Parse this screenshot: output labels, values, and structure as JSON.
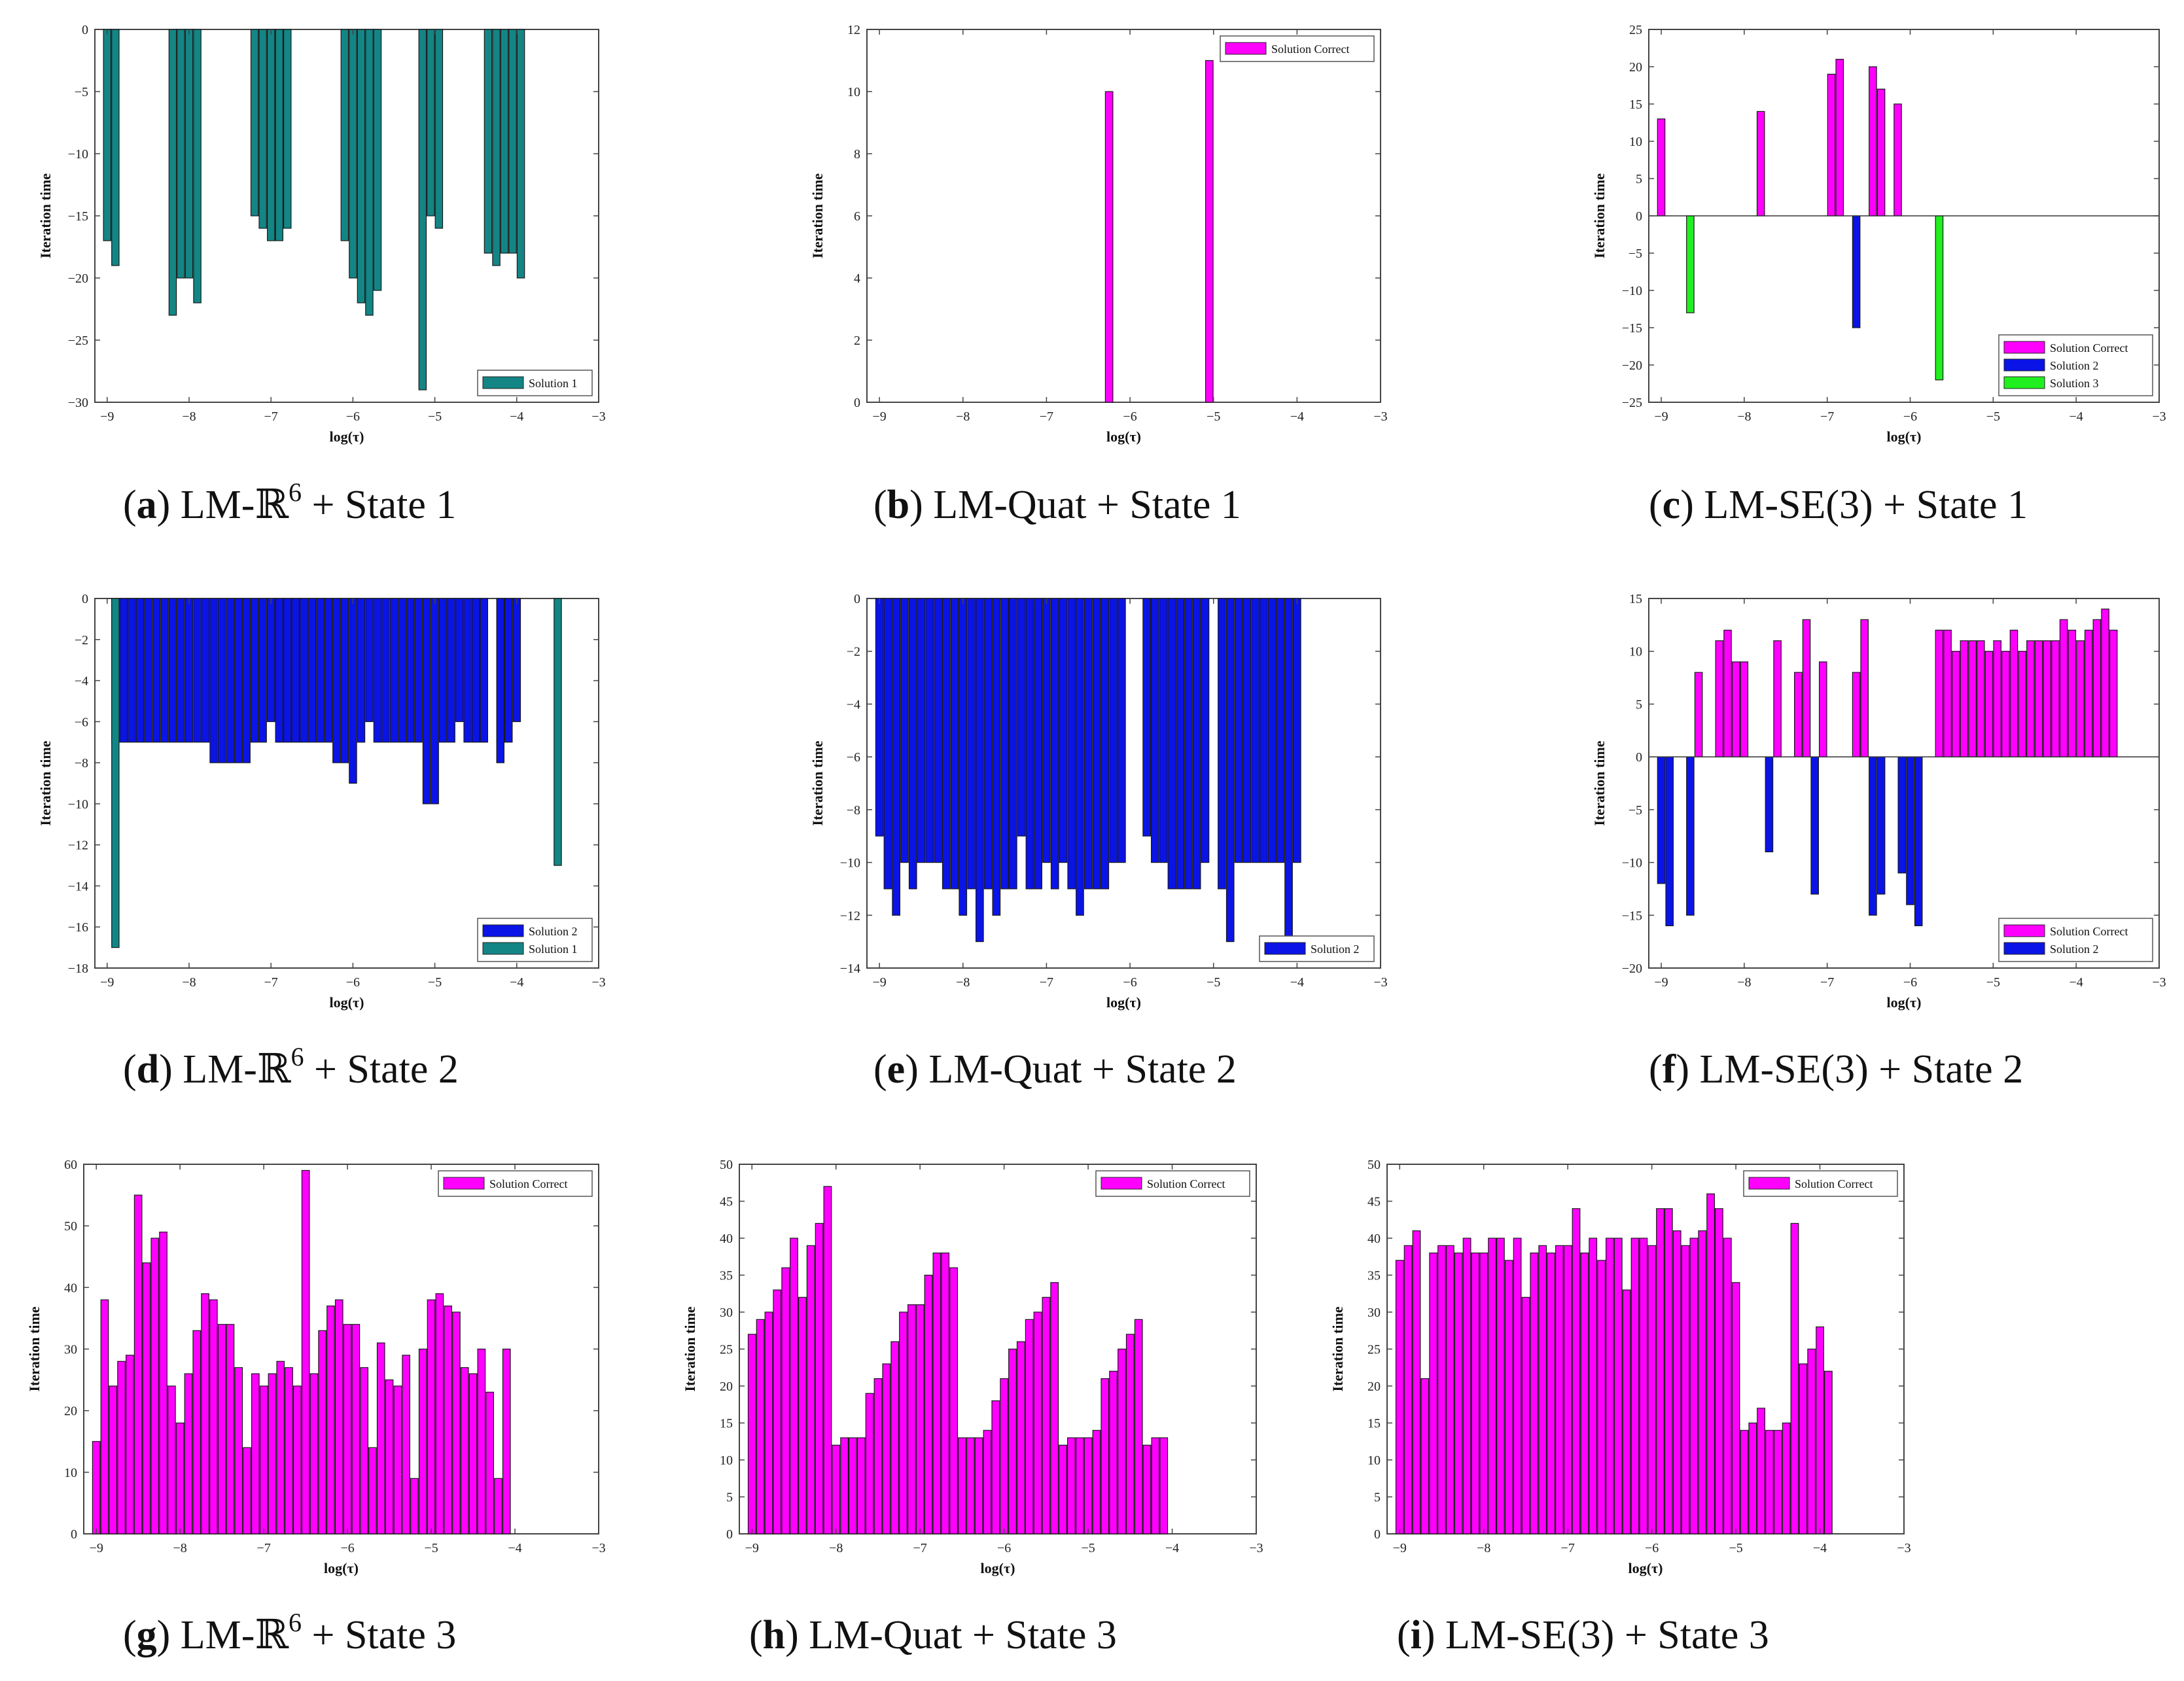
{
  "figure": {
    "panels": [
      {
        "id": "a",
        "caption": {
          "letter": "a",
          "text": "LM-ℝ",
          "sup": "6",
          "tail": " + State 1"
        }
      },
      {
        "id": "b",
        "caption": {
          "letter": "b",
          "text": "LM-Quat + State 1",
          "sup": "",
          "tail": ""
        }
      },
      {
        "id": "c",
        "caption": {
          "letter": "c",
          "text": "LM-SE(3) + State 1",
          "sup": "",
          "tail": ""
        }
      },
      {
        "id": "d",
        "caption": {
          "letter": "d",
          "text": "LM-ℝ",
          "sup": "6",
          "tail": " + State 2"
        }
      },
      {
        "id": "e",
        "caption": {
          "letter": "e",
          "text": "LM-Quat + State 2",
          "sup": "",
          "tail": ""
        }
      },
      {
        "id": "f",
        "caption": {
          "letter": "f",
          "text": "LM-SE(3) + State 2",
          "sup": "",
          "tail": ""
        }
      },
      {
        "id": "g",
        "caption": {
          "letter": "g",
          "text": "LM-ℝ",
          "sup": "6",
          "tail": " + State 3"
        }
      },
      {
        "id": "h",
        "caption": {
          "letter": "h",
          "text": "LM-Quat + State 3",
          "sup": "",
          "tail": ""
        }
      },
      {
        "id": "i",
        "caption": {
          "letter": "i",
          "text": "LM-SE(3) + State 3",
          "sup": "",
          "tail": ""
        }
      }
    ]
  },
  "colors": {
    "Solution Correct": "#ff00ff",
    "Solution 1": "#138585",
    "Solution 2": "#0a14e6",
    "Solution 3": "#20f020",
    "axis": "#444444"
  },
  "chart_data": [
    {
      "id": "a",
      "type": "bar",
      "xlabel": "log(τ)",
      "ylabel": "Iteration time",
      "xlim": [
        -9.15,
        -3
      ],
      "ylim": [
        -30,
        0
      ],
      "yticks": [
        0,
        -5,
        -10,
        -15,
        -20,
        -25,
        -30
      ],
      "xticks": [
        -9,
        -8,
        -7,
        -6,
        -5,
        -4,
        -3
      ],
      "bar_width": 0.09,
      "legend": {
        "position": "bottom-right",
        "entries": [
          "Solution 1"
        ]
      },
      "series": [
        {
          "name": "Solution 1",
          "points": [
            [
              -9.0,
              -17
            ],
            [
              -8.9,
              -19
            ],
            [
              -8.2,
              -23
            ],
            [
              -8.1,
              -20
            ],
            [
              -8.0,
              -20
            ],
            [
              -7.9,
              -22
            ],
            [
              -7.2,
              -15
            ],
            [
              -7.1,
              -16
            ],
            [
              -7.0,
              -17
            ],
            [
              -6.9,
              -17
            ],
            [
              -6.8,
              -16
            ],
            [
              -6.1,
              -17
            ],
            [
              -6.0,
              -20
            ],
            [
              -5.9,
              -22
            ],
            [
              -5.8,
              -23
            ],
            [
              -5.7,
              -21
            ],
            [
              -5.15,
              -29
            ],
            [
              -5.05,
              -15
            ],
            [
              -4.95,
              -16
            ],
            [
              -4.35,
              -18
            ],
            [
              -4.25,
              -19
            ],
            [
              -4.15,
              -18
            ],
            [
              -4.05,
              -18
            ],
            [
              -3.95,
              -20
            ]
          ]
        }
      ]
    },
    {
      "id": "b",
      "type": "bar",
      "xlabel": "log(τ)",
      "ylabel": "Iteration time",
      "xlim": [
        -9.15,
        -3
      ],
      "ylim": [
        0,
        12
      ],
      "yticks": [
        0,
        2,
        4,
        6,
        8,
        10,
        12
      ],
      "xticks": [
        -9,
        -8,
        -7,
        -6,
        -5,
        -4,
        -3
      ],
      "bar_width": 0.09,
      "legend": {
        "position": "top-right",
        "entries": [
          "Solution Correct"
        ]
      },
      "series": [
        {
          "name": "Solution Correct",
          "points": [
            [
              -6.25,
              10
            ],
            [
              -5.05,
              11
            ]
          ]
        }
      ]
    },
    {
      "id": "c",
      "type": "bar",
      "xlabel": "log(τ)",
      "ylabel": "Iteration time",
      "xlim": [
        -9.15,
        -3
      ],
      "ylim": [
        -25,
        25
      ],
      "yticks": [
        25,
        20,
        15,
        10,
        5,
        0,
        -5,
        -10,
        -15,
        -20,
        -25
      ],
      "xticks": [
        -9,
        -8,
        -7,
        -6,
        -5,
        -4,
        -3
      ],
      "bar_width": 0.09,
      "zero_line": true,
      "legend": {
        "position": "bottom-right",
        "entries": [
          "Solution Correct",
          "Solution 2",
          "Solution 3"
        ]
      },
      "series": [
        {
          "name": "Solution Correct",
          "points": [
            [
              -9.0,
              13
            ],
            [
              -7.8,
              14
            ],
            [
              -6.95,
              19
            ],
            [
              -6.85,
              21
            ],
            [
              -6.45,
              20
            ],
            [
              -6.35,
              17
            ],
            [
              -6.15,
              15
            ]
          ]
        },
        {
          "name": "Solution 2",
          "points": [
            [
              -6.65,
              -15
            ]
          ]
        },
        {
          "name": "Solution 3",
          "points": [
            [
              -8.65,
              -13
            ],
            [
              -5.65,
              -22
            ]
          ]
        }
      ]
    },
    {
      "id": "d",
      "type": "bar",
      "xlabel": "log(τ)",
      "ylabel": "Iteration time",
      "xlim": [
        -9.15,
        -3
      ],
      "ylim": [
        -18,
        0
      ],
      "yticks": [
        0,
        -2,
        -4,
        -6,
        -8,
        -10,
        -12,
        -14,
        -16,
        -18
      ],
      "xticks": [
        -9,
        -8,
        -7,
        -6,
        -5,
        -4,
        -3
      ],
      "bar_width": 0.09,
      "x_start": -8.9,
      "x_step": 0.1,
      "legend": {
        "position": "bottom-right",
        "entries": [
          "Solution 2",
          "Solution 1"
        ]
      },
      "series": [
        {
          "name": "Solution 2",
          "values": [
            -7,
            -7,
            -7,
            -7,
            -7,
            -7,
            -7,
            -7,
            -7,
            -7,
            -7,
            -7,
            -8,
            -8,
            -8,
            -8,
            -8,
            -7,
            -7,
            -6,
            -7,
            -7,
            -7,
            -7,
            -7,
            -7,
            -7,
            -8,
            -8,
            -9,
            -7,
            -6,
            -7,
            -7,
            -7,
            -7,
            -7,
            -7,
            -10,
            -10,
            -7,
            -7,
            -6,
            -7,
            -7,
            -7,
            null,
            -8,
            -7,
            -6
          ]
        },
        {
          "name": "Solution 1",
          "points": [
            [
              -8.9,
              -17
            ],
            [
              -3.5,
              -13
            ]
          ]
        }
      ]
    },
    {
      "id": "e",
      "type": "bar",
      "xlabel": "log(τ)",
      "ylabel": "Iteration time",
      "xlim": [
        -9.15,
        -3
      ],
      "ylim": [
        -14,
        0
      ],
      "yticks": [
        0,
        -2,
        -4,
        -6,
        -8,
        -10,
        -12,
        -14
      ],
      "xticks": [
        -9,
        -8,
        -7,
        -6,
        -5,
        -4,
        -3
      ],
      "bar_width": 0.09,
      "x_start": -9.0,
      "x_step": 0.1,
      "legend": {
        "position": "bottom-right",
        "entries": [
          "Solution 2"
        ]
      },
      "series": [
        {
          "name": "Solution 2",
          "values": [
            -9,
            -11,
            -12,
            -10,
            -11,
            -10,
            -10,
            -10,
            -11,
            -11,
            -12,
            -11,
            -13,
            -11,
            -12,
            -11,
            -11,
            -9,
            -11,
            -11,
            -10,
            -11,
            -10,
            -11,
            -12,
            -11,
            -11,
            -11,
            -10,
            -10,
            null,
            null,
            -9,
            -10,
            -10,
            -11,
            -11,
            -11,
            -11,
            -10,
            null,
            -11,
            -13,
            -10,
            -10,
            -10,
            -10,
            -10,
            -10,
            -13,
            -10
          ]
        }
      ]
    },
    {
      "id": "f",
      "type": "bar",
      "xlabel": "log(τ)",
      "ylabel": "Iteration time",
      "xlim": [
        -9.15,
        -3
      ],
      "ylim": [
        -20,
        15
      ],
      "yticks": [
        15,
        10,
        5,
        0,
        -5,
        -10,
        -15,
        -20
      ],
      "xticks": [
        -9,
        -8,
        -7,
        -6,
        -5,
        -4,
        -3
      ],
      "bar_width": 0.09,
      "zero_line": true,
      "legend": {
        "position": "bottom-right",
        "entries": [
          "Solution Correct",
          "Solution 2"
        ]
      },
      "series": [
        {
          "name": "Solution Correct",
          "points": [
            [
              -8.55,
              8
            ],
            [
              -8.3,
              11
            ],
            [
              -8.2,
              12
            ],
            [
              -8.1,
              9
            ],
            [
              -8.0,
              9
            ],
            [
              -7.6,
              11
            ],
            [
              -7.35,
              8
            ],
            [
              -7.25,
              13
            ],
            [
              -7.05,
              9
            ],
            [
              -6.65,
              8
            ],
            [
              -6.55,
              13
            ],
            [
              -5.65,
              12
            ],
            [
              -5.55,
              12
            ],
            [
              -5.45,
              10
            ],
            [
              -5.35,
              11
            ],
            [
              -5.25,
              11
            ],
            [
              -5.15,
              11
            ],
            [
              -5.05,
              10
            ],
            [
              -4.95,
              11
            ],
            [
              -4.85,
              10
            ],
            [
              -4.75,
              12
            ],
            [
              -4.65,
              10
            ],
            [
              -4.55,
              11
            ],
            [
              -4.45,
              11
            ],
            [
              -4.35,
              11
            ],
            [
              -4.25,
              11
            ],
            [
              -4.15,
              13
            ],
            [
              -4.05,
              12
            ],
            [
              -3.95,
              11
            ],
            [
              -3.85,
              12
            ],
            [
              -3.75,
              13
            ],
            [
              -3.65,
              14
            ],
            [
              -3.55,
              12
            ]
          ]
        },
        {
          "name": "Solution 2",
          "points": [
            [
              -9.0,
              -12
            ],
            [
              -8.9,
              -16
            ],
            [
              -8.65,
              -15
            ],
            [
              -7.7,
              -9
            ],
            [
              -7.15,
              -13
            ],
            [
              -6.45,
              -15
            ],
            [
              -6.35,
              -13
            ],
            [
              -6.1,
              -11
            ],
            [
              -6.0,
              -14
            ],
            [
              -5.9,
              -16
            ]
          ]
        }
      ]
    },
    {
      "id": "g",
      "type": "bar",
      "xlabel": "log(τ)",
      "ylabel": "Iteration time",
      "xlim": [
        -9.15,
        -3
      ],
      "ylim": [
        0,
        60
      ],
      "yticks": [
        0,
        10,
        20,
        30,
        40,
        50,
        60
      ],
      "xticks": [
        -9,
        -8,
        -7,
        -6,
        -5,
        -4,
        -3
      ],
      "bar_width": 0.09,
      "x_start": -9.0,
      "x_step": 0.1,
      "legend": {
        "position": "top-right",
        "entries": [
          "Solution Correct"
        ]
      },
      "series": [
        {
          "name": "Solution Correct",
          "values": [
            15,
            38,
            24,
            28,
            29,
            55,
            44,
            48,
            49,
            24,
            18,
            26,
            33,
            39,
            38,
            34,
            34,
            27,
            14,
            26,
            24,
            26,
            28,
            27,
            24,
            59,
            26,
            33,
            37,
            38,
            34,
            34,
            27,
            14,
            31,
            25,
            24,
            29,
            9,
            30,
            38,
            39,
            37,
            36,
            27,
            26,
            30,
            23,
            9,
            30
          ]
        }
      ]
    },
    {
      "id": "h",
      "type": "bar",
      "xlabel": "log(τ)",
      "ylabel": "Iteration time",
      "xlim": [
        -9.15,
        -3
      ],
      "ylim": [
        0,
        50
      ],
      "yticks": [
        0,
        5,
        10,
        15,
        20,
        25,
        30,
        35,
        40,
        45,
        50
      ],
      "xticks": [
        -9,
        -8,
        -7,
        -6,
        -5,
        -4,
        -3
      ],
      "bar_width": 0.09,
      "x_start": -9.0,
      "x_step": 0.1,
      "legend": {
        "position": "top-right",
        "entries": [
          "Solution Correct"
        ]
      },
      "series": [
        {
          "name": "Solution Correct",
          "values": [
            27,
            29,
            30,
            33,
            36,
            40,
            32,
            39,
            42,
            47,
            12,
            13,
            13,
            13,
            19,
            21,
            23,
            26,
            30,
            31,
            31,
            35,
            38,
            38,
            36,
            13,
            13,
            13,
            14,
            18,
            21,
            25,
            26,
            29,
            30,
            32,
            34,
            12,
            13,
            13,
            13,
            14,
            21,
            22,
            25,
            27,
            29,
            12,
            13,
            13
          ]
        }
      ]
    },
    {
      "id": "i",
      "type": "bar",
      "xlabel": "log(τ)",
      "ylabel": "Iteration time",
      "xlim": [
        -9.15,
        -3
      ],
      "ylim": [
        0,
        50
      ],
      "yticks": [
        0,
        5,
        10,
        15,
        20,
        25,
        30,
        35,
        40,
        45,
        50
      ],
      "xticks": [
        -9,
        -8,
        -7,
        -6,
        -5,
        -4,
        -3
      ],
      "bar_width": 0.09,
      "x_start": -9.0,
      "x_step": 0.1,
      "legend": {
        "position": "top-right",
        "entries": [
          "Solution Correct"
        ]
      },
      "series": [
        {
          "name": "Solution Correct",
          "values": [
            37,
            39,
            41,
            21,
            38,
            39,
            39,
            38,
            40,
            38,
            38,
            40,
            40,
            37,
            40,
            32,
            38,
            39,
            38,
            39,
            39,
            44,
            38,
            40,
            37,
            40,
            40,
            33,
            40,
            40,
            39,
            44,
            44,
            41,
            39,
            40,
            41,
            46,
            44,
            40,
            34,
            14,
            15,
            17,
            14,
            14,
            15,
            42,
            23,
            25,
            28,
            22
          ]
        }
      ]
    }
  ]
}
